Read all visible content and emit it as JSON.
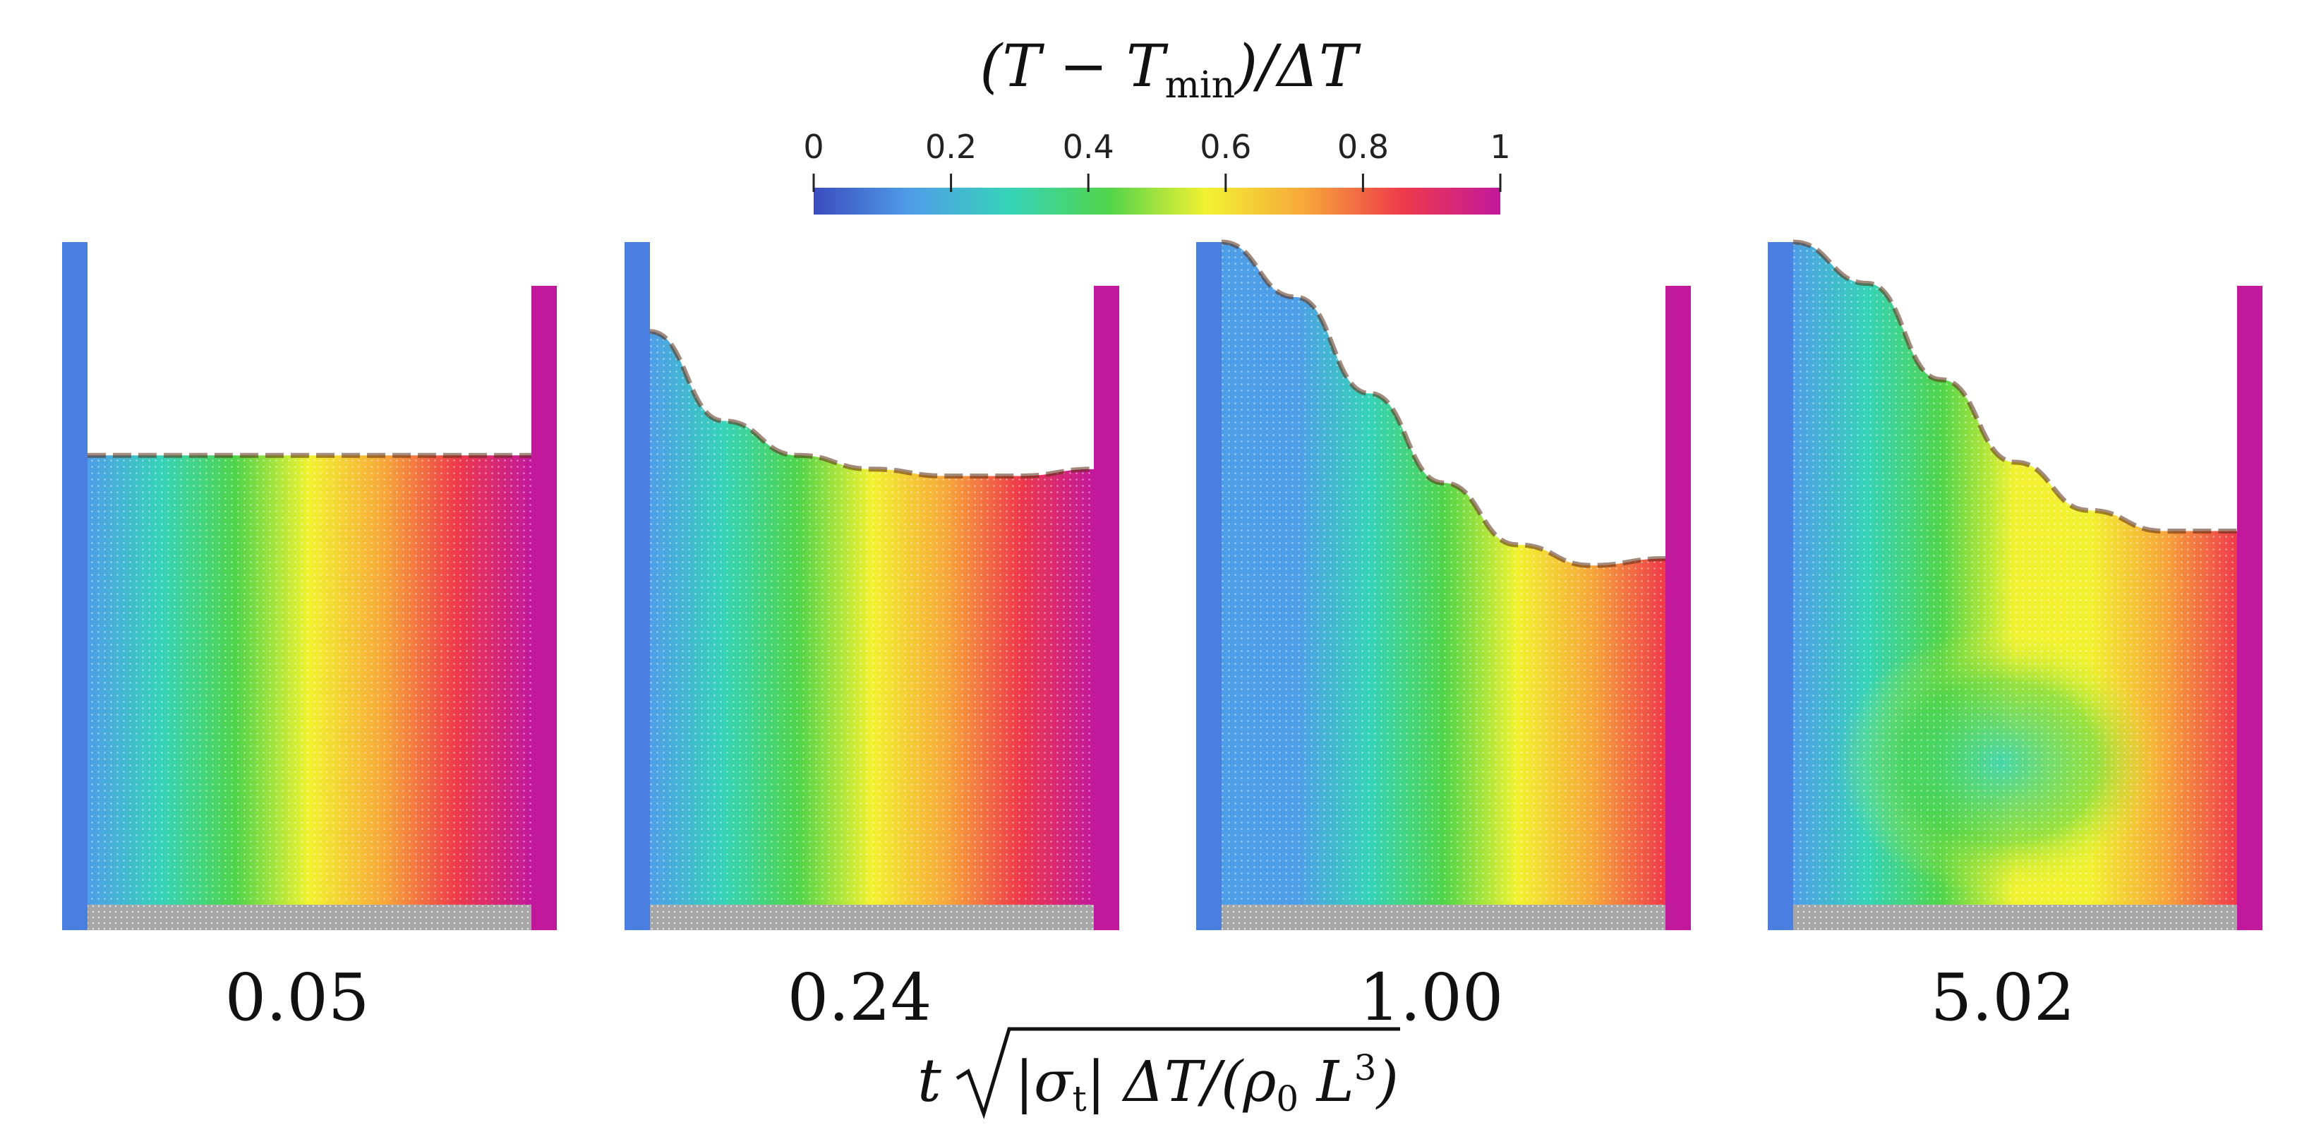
{
  "colorbar": {
    "title": "(T − Tmin)/ΔT",
    "title_parts": {
      "open": "(T − T",
      "sub": "min",
      "close": ")/ΔT"
    },
    "ticks": [
      "0",
      "0.2",
      "0.4",
      "0.6",
      "0.8",
      "1"
    ],
    "stops": [
      "#3b4cc0",
      "#4f9ee8",
      "#36d3b8",
      "#4fd44a",
      "#f2f232",
      "#f7a83a",
      "#ee3a4a",
      "#c2189c"
    ],
    "range": [
      0,
      1
    ]
  },
  "panels": [
    {
      "label": "0.05",
      "surface_profile": [
        0.31,
        0.31,
        0.31,
        0.31,
        0.31,
        0.31,
        0.31
      ],
      "field": "linear"
    },
    {
      "label": "0.24",
      "surface_profile": [
        0.13,
        0.26,
        0.31,
        0.33,
        0.34,
        0.34,
        0.33
      ],
      "field": "mild"
    },
    {
      "label": "1.00",
      "surface_profile": [
        0.0,
        0.08,
        0.22,
        0.35,
        0.44,
        0.47,
        0.46
      ],
      "field": "strong"
    },
    {
      "label": "5.02",
      "surface_profile": [
        0.0,
        0.06,
        0.2,
        0.32,
        0.39,
        0.42,
        0.42
      ],
      "field": "swirl"
    }
  ],
  "walls": {
    "cold": "#4a7ee0",
    "hot": "#c2189c",
    "floor": "#a6a6a6"
  },
  "xlabel": {
    "prefix": "t",
    "radicand_parts": {
      "a": "|σ",
      "a_sub": "t",
      "b": "| ΔT/(ρ",
      "b_sub": "0",
      "c": " L",
      "c_sup": "3",
      "d": ")"
    }
  }
}
